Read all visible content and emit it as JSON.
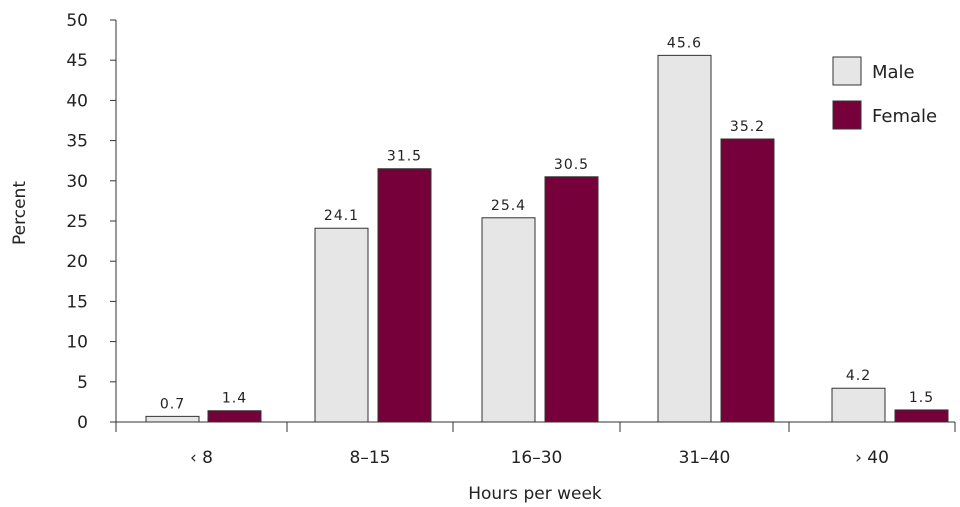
{
  "chart_data": {
    "type": "bar",
    "categories": [
      "‹ 8",
      "8–15",
      "16–30",
      "31–40",
      "› 40"
    ],
    "series": [
      {
        "name": "Male",
        "values": [
          0.7,
          24.1,
          25.4,
          45.6,
          4.2
        ],
        "labels": [
          "0.7",
          "24.1",
          "25.4",
          "45.6",
          "4.2"
        ],
        "color": "#e6e6e6"
      },
      {
        "name": "Female",
        "values": [
          1.4,
          31.5,
          30.5,
          35.2,
          1.5
        ],
        "labels": [
          "1.4",
          "31.5",
          "30.5",
          "35.2",
          "1.5"
        ],
        "color": "#76003a"
      }
    ],
    "ylim": [
      0,
      50
    ],
    "yticks": [
      0,
      5,
      10,
      15,
      20,
      25,
      30,
      35,
      40,
      45,
      50
    ],
    "xlabel": "Hours per week",
    "ylabel": "Percent",
    "legend_position": "top-right",
    "grid": false
  }
}
